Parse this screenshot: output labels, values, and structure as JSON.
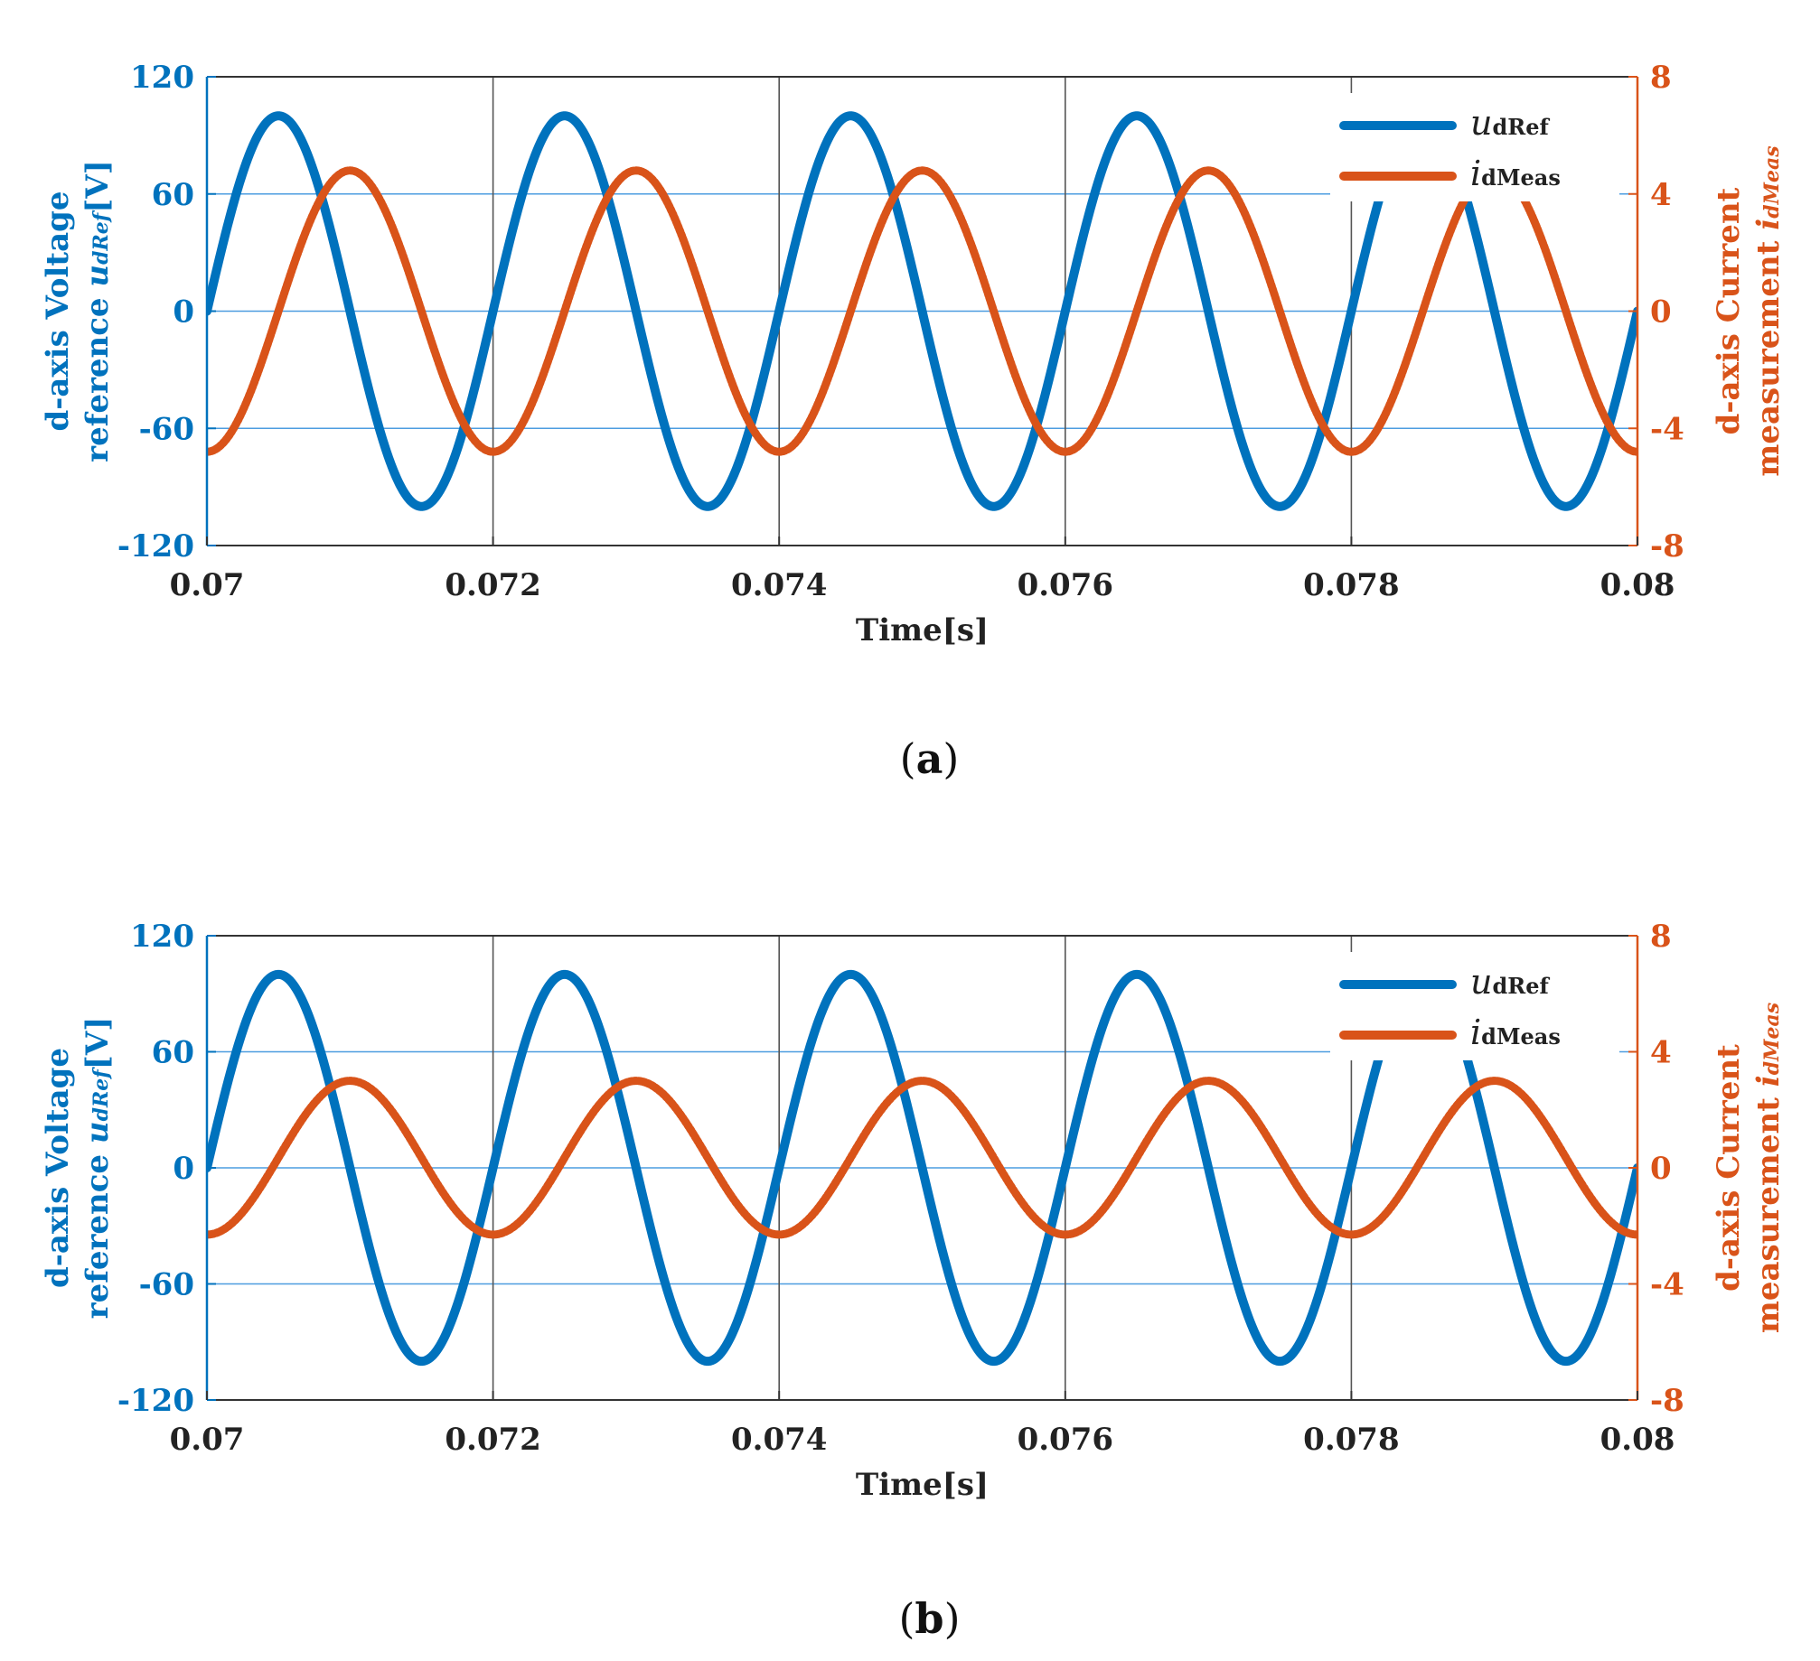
{
  "chart_data": [
    {
      "id": "a",
      "type": "line",
      "caption_open": "(",
      "caption_letter": "a",
      "caption_close": ")",
      "xlabel": "Time[s]",
      "xlim": [
        0.07,
        0.08
      ],
      "xticks": [
        "0.07",
        "0.072",
        "0.074",
        "0.076",
        "0.078",
        "0.08"
      ],
      "ylabel_left": {
        "line1": "d-axis Voltage",
        "line2_prefix": "reference ",
        "line2_var": "u",
        "line2_sub": "dRef",
        "line2_suffix": "[V]"
      },
      "ylim_left": [
        -120,
        120
      ],
      "yticks_left": [
        "120",
        "60",
        "0",
        "-60",
        "-120"
      ],
      "ylabel_right": {
        "line1": "d-axis Current",
        "line2_prefix": "measurement ",
        "line2_var": "i",
        "line2_sub": "dMeas"
      },
      "ylim_right": [
        -8,
        8
      ],
      "yticks_right": [
        "8",
        "4",
        "0",
        "-4",
        "-8"
      ],
      "grid": true,
      "legend_position": "top-right",
      "series": [
        {
          "name": "udRef",
          "var": "u",
          "sub": "dRef",
          "axis": "left",
          "color": "#0072BD",
          "amplitude": 100,
          "frequency_hz": 500,
          "phase_deg": 0,
          "offset": 0
        },
        {
          "name": "idMeas",
          "var": "i",
          "sub": "dMeas",
          "axis": "right",
          "color": "#D95319",
          "amplitude": 4.8,
          "frequency_hz": 500,
          "phase_deg": -90,
          "offset": 0
        }
      ]
    },
    {
      "id": "b",
      "type": "line",
      "caption_open": "(",
      "caption_letter": "b",
      "caption_close": ")",
      "xlabel": "Time[s]",
      "xlim": [
        0.07,
        0.08
      ],
      "xticks": [
        "0.07",
        "0.072",
        "0.074",
        "0.076",
        "0.078",
        "0.08"
      ],
      "ylabel_left": {
        "line1": "d-axis Voltage",
        "line2_prefix": "reference ",
        "line2_var": "u",
        "line2_sub": "dRef",
        "line2_suffix": "[V]"
      },
      "ylim_left": [
        -120,
        120
      ],
      "yticks_left": [
        "120",
        "60",
        "0",
        "-60",
        "-120"
      ],
      "ylabel_right": {
        "line1": "d-axis Current",
        "line2_prefix": "measurement ",
        "line2_var": "i",
        "line2_sub": "dMeas"
      },
      "ylim_right": [
        -8,
        8
      ],
      "yticks_right": [
        "8",
        "4",
        "0",
        "-4",
        "-8"
      ],
      "grid": true,
      "legend_position": "top-right",
      "series": [
        {
          "name": "udRef",
          "var": "u",
          "sub": "dRef",
          "axis": "left",
          "color": "#0072BD",
          "amplitude": 100,
          "frequency_hz": 500,
          "phase_deg": 0,
          "offset": 0
        },
        {
          "name": "idMeas",
          "var": "i",
          "sub": "dMeas",
          "axis": "right",
          "color": "#D95319",
          "amplitude": 2.65,
          "frequency_hz": 500,
          "phase_deg": -90,
          "offset": 0.35
        }
      ]
    }
  ]
}
